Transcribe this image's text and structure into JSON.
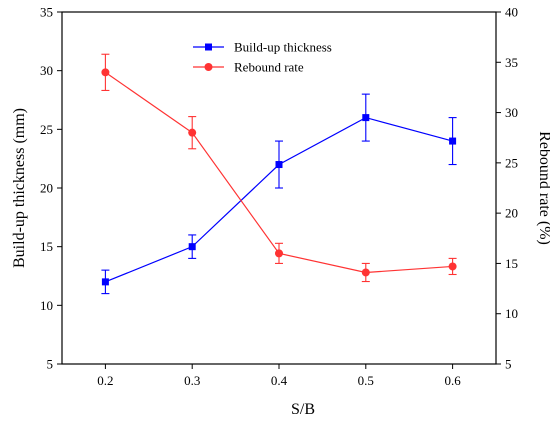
{
  "chart_data": {
    "type": "line",
    "title": "",
    "xlabel": "S/B",
    "ylabel": "Build-up thickness (mm)",
    "y2label": "Rebound rate (%)",
    "x": [
      0.2,
      0.3,
      0.4,
      0.5,
      0.6
    ],
    "x_tick_labels": [
      "0.2",
      "0.3",
      "0.4",
      "0.5",
      "0.6"
    ],
    "xlim": [
      0.15,
      0.65
    ],
    "ylim": [
      5,
      35
    ],
    "y_ticks": [
      5,
      10,
      15,
      20,
      25,
      30,
      35
    ],
    "y2lim": [
      5,
      40
    ],
    "y2_ticks": [
      5,
      10,
      15,
      20,
      25,
      30,
      35,
      40
    ],
    "legend_position": "top-center",
    "grid": false,
    "series": [
      {
        "name": "Build-up thickness",
        "axis": "left",
        "color": "#0000ff",
        "marker": "square",
        "values": [
          12,
          15,
          22,
          26,
          24
        ],
        "errors": [
          1,
          1,
          2,
          2,
          2
        ]
      },
      {
        "name": "Rebound rate",
        "axis": "right",
        "color": "#ff3333",
        "marker": "circle",
        "values": [
          34,
          28,
          16,
          14.1,
          14.7
        ],
        "errors": [
          1.8,
          1.6,
          1.0,
          0.9,
          0.8
        ]
      }
    ]
  }
}
